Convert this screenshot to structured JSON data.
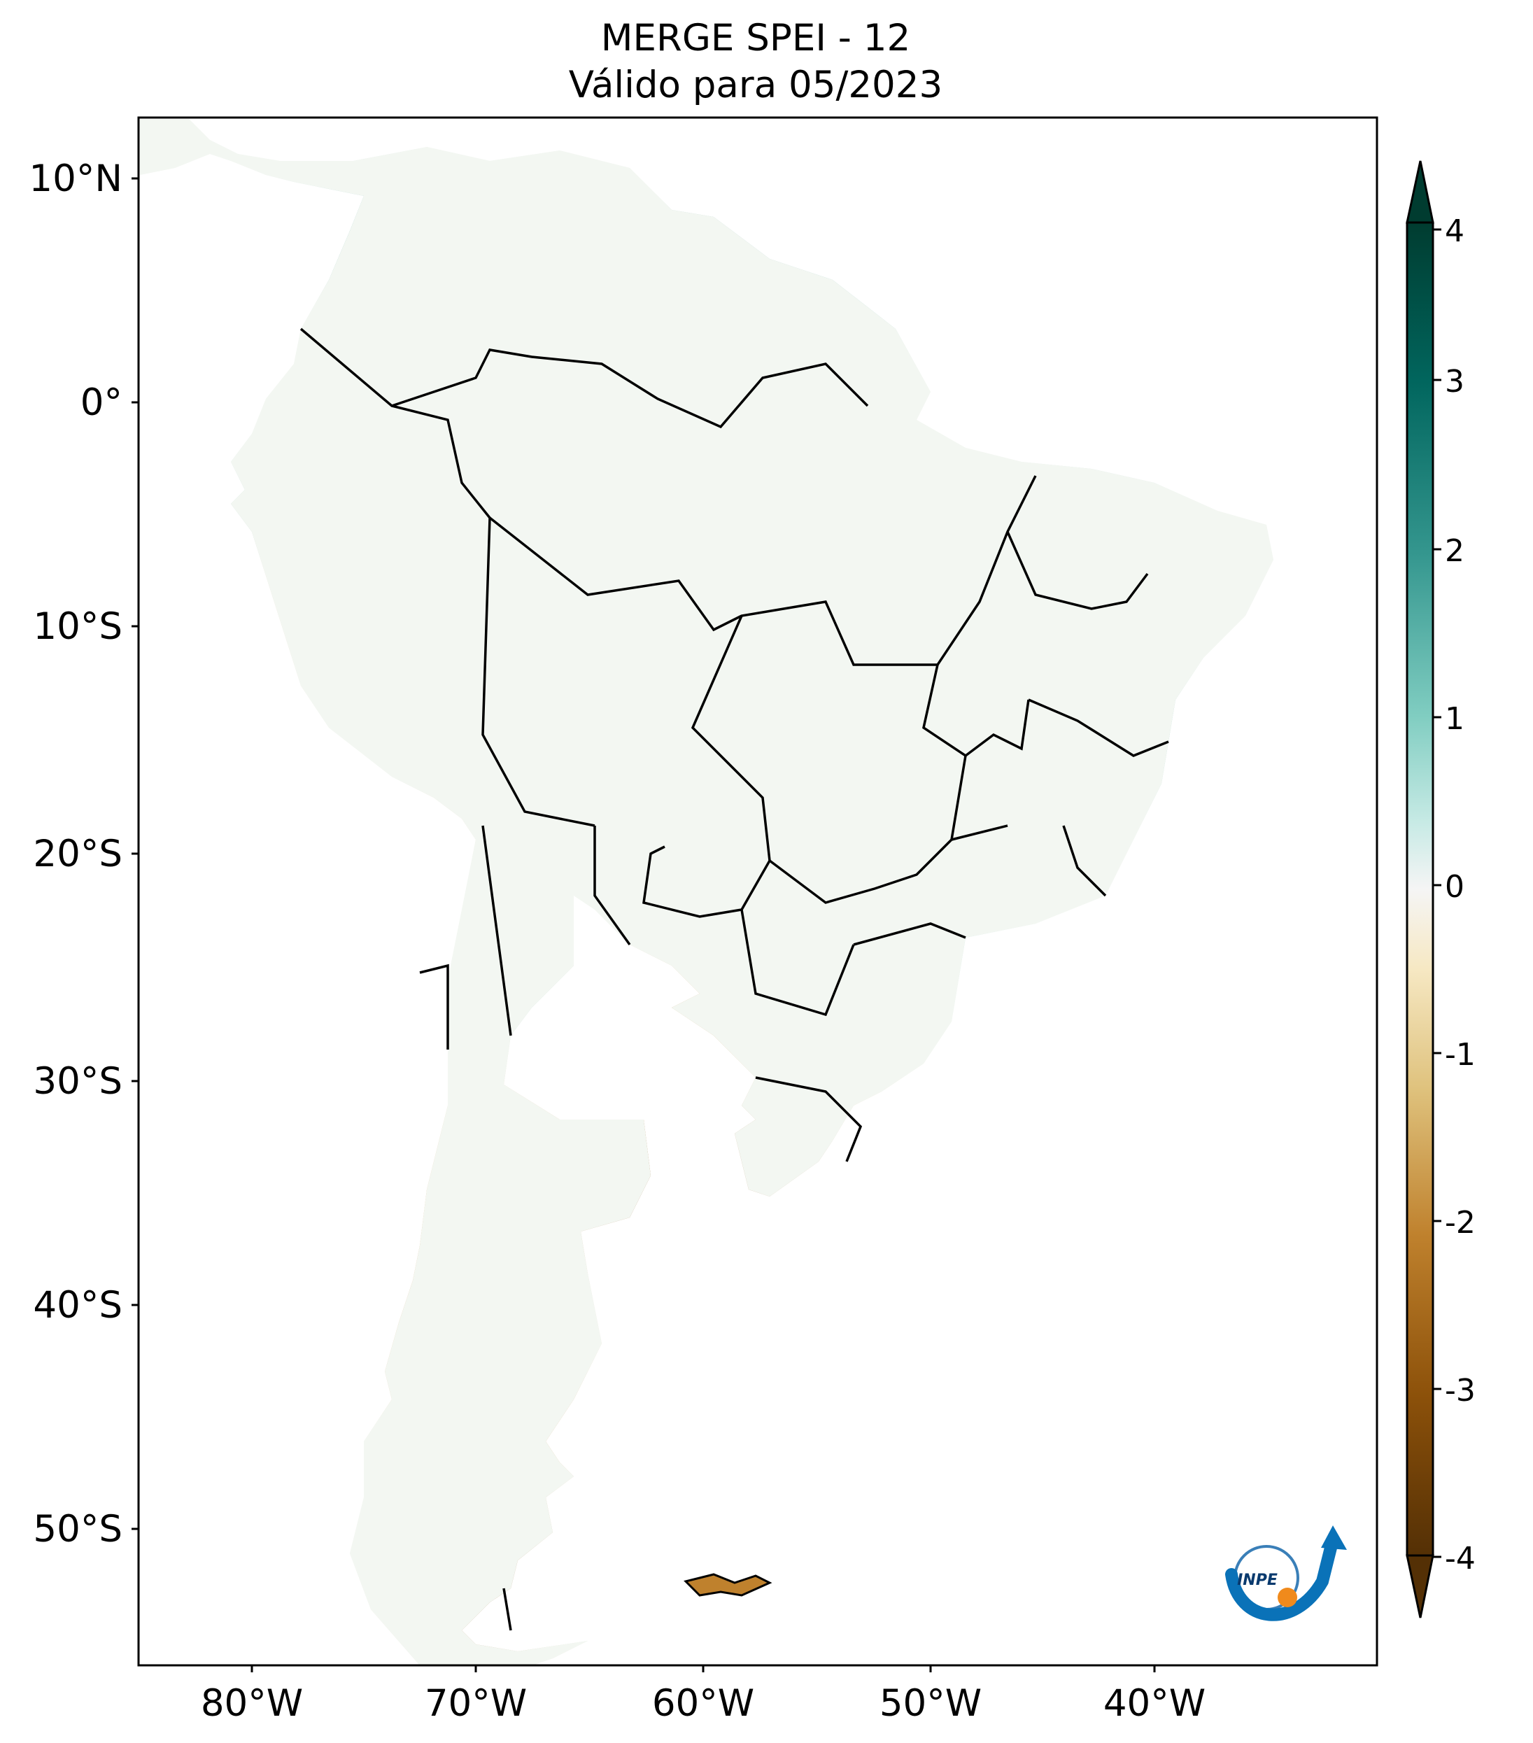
{
  "title": {
    "line1": "MERGE   SPEI - 12",
    "line2": "Válido para 05/2023"
  },
  "axes": {
    "lat_ticks": [
      "10°N",
      "0°",
      "10°S",
      "20°S",
      "30°S",
      "40°S",
      "50°S"
    ],
    "lon_ticks": [
      "80°W",
      "70°W",
      "60°W",
      "50°W",
      "40°W"
    ]
  },
  "colorbar": {
    "ticks": [
      "4",
      "3",
      "2",
      "1",
      "0",
      "-1",
      "-2",
      "-3",
      "-4"
    ],
    "min": -4,
    "max": 4,
    "colors": {
      "dry_extreme": "#543005",
      "dry": "#bf812d",
      "mild_dry": "#f6e8c3",
      "neutral": "#f5f5f5",
      "mild_wet": "#c7eae5",
      "wet": "#35978f",
      "wet_extreme": "#003c30"
    }
  },
  "logo": {
    "text": "INPE"
  }
}
